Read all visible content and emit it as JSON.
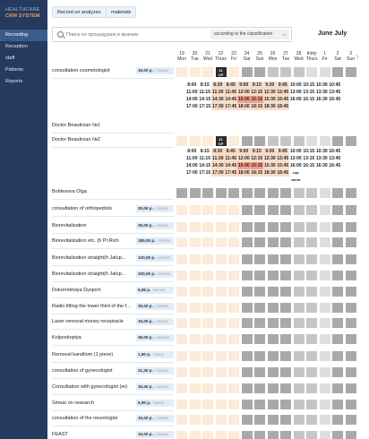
{
  "logo": {
    "line1": "HEALTHCARE",
    "line2": "CRM SYSTEM"
  },
  "nav": [
    "Recording",
    "Reception",
    "staff",
    "Patients",
    "Reports"
  ],
  "top_buttons": [
    "Record on analyzes",
    "materials"
  ],
  "search": {
    "placeholder": "Поиск по процедурам и врачам",
    "filter": "according to the classification"
  },
  "month": "June July",
  "days": [
    {
      "n": "19",
      "d": "Mon"
    },
    {
      "n": "20",
      "d": "Tue"
    },
    {
      "n": "21",
      "d": "Wed"
    },
    {
      "n": "22",
      "d": "Thurs"
    },
    {
      "n": "23",
      "d": "Fri"
    },
    {
      "n": "24",
      "d": "Sat"
    },
    {
      "n": "25",
      "d": "Sun"
    },
    {
      "n": "26",
      "d": "Mon"
    },
    {
      "n": "27",
      "d": "Tue"
    },
    {
      "n": "28",
      "d": "Wed"
    },
    {
      "n": "thirty",
      "d": "Thurs"
    },
    {
      "n": "1",
      "d": "Fri"
    },
    {
      "n": "2",
      "d": "Sat"
    },
    {
      "n": "3",
      "d": "Sun"
    }
  ],
  "today_badge": {
    "day": "21",
    "label": "СР"
  },
  "slot_row1": [
    [
      "8:00",
      "8:15",
      "8:30",
      "8:45",
      "9:00",
      "9:15",
      "9:30",
      "9:45",
      "10:00",
      "10:15",
      "10:30",
      "10:45"
    ],
    [
      "11:00",
      "11:15",
      "11:30",
      "11:45",
      "12:00",
      "12:15",
      "12:30",
      "12:45",
      "13:00",
      "13:15",
      "13:30",
      "13:45"
    ],
    [
      "14:00",
      "14:15",
      "14:30",
      "14:45",
      "15:00",
      "15:15",
      "15:30",
      "15:45",
      "16:00",
      "16:15",
      "16:30",
      "16:45"
    ],
    [
      "17:00",
      "17:15",
      "17:30",
      "17:45",
      "18:00",
      "18:15",
      "18:30",
      "18:45"
    ]
  ],
  "slot_row2": [
    [
      "8:00",
      "8:15",
      "8:30",
      "8:45",
      "9:00",
      "9:15",
      "9:30",
      "9:45",
      "10:00",
      "10:15",
      "10:30",
      "10:45"
    ],
    [
      "11:00",
      "11:15",
      "11:30",
      "11:45",
      "12:00",
      "12:15",
      "12:30",
      "12:45",
      "13:00",
      "13:15",
      "13:30",
      "13:45"
    ],
    [
      "14:00",
      "14:15",
      "14:30",
      "14:45",
      "15:00",
      "15:15",
      "15:30",
      "15:45",
      "16:00",
      "16:15",
      "16:30",
      "16:45"
    ],
    [
      "17:00",
      "17:15",
      "17:30",
      "17:45",
      "18:00",
      "18:15",
      "18:30",
      "18:45",
      "еще часов"
    ]
  ],
  "services": [
    {
      "name": "consultation cosmetologist",
      "price": "15,00 р.",
      "code": "/ 233000"
    },
    {
      "name": "Doctor Beautician №1",
      "price": "",
      "code": ""
    },
    {
      "name": "Doctor Beautician №2",
      "price": "",
      "code": ""
    },
    {
      "name": "Boldesova Olga",
      "price": "",
      "code": ""
    },
    {
      "name": "consultation of orthopedists",
      "price": "30,00 р.",
      "code": "/ 233000"
    },
    {
      "name": "Biorevitalization",
      "price": "30,00 р.",
      "code": "/ 233000"
    },
    {
      "name": "Biorevitalization etc. (h Pr.Rich",
      "price": "185,00 р.",
      "code": "/ 233000"
    },
    {
      "name": "Biorevitalization straight(h Jalup...",
      "price": "120,00 р.",
      "code": "/ 233000"
    },
    {
      "name": "Biorevitalization straight(h Jalup...",
      "price": "200,00 р.",
      "code": "/ 233000"
    },
    {
      "name": "Dokorrektsiya Dysport",
      "price": "6,65 р.",
      "code": "/ 66 500"
    },
    {
      "name": "Radio lifting the lower third of the f...",
      "price": "30,00 р.",
      "code": "/ 233000"
    },
    {
      "name": "Laser removal money receptacle",
      "price": "15,00 р.",
      "code": "/ 233000"
    },
    {
      "name": "Kolposkopiya",
      "price": "49,00 р.",
      "code": "/ 490 000"
    },
    {
      "name": "Removal kandilom (1 piece)",
      "price": "1,90 р.",
      "code": "/ 19000"
    },
    {
      "name": "consultation of gynecologist",
      "price": "21,30 р.",
      "code": "/ 213000"
    },
    {
      "name": "Consultation with gynecologist (re)",
      "price": "16,40 р.",
      "code": "/ 164000"
    },
    {
      "name": "Smear on research",
      "price": "5,90 р.",
      "code": "/ 59000"
    },
    {
      "name": "consultation of the neurologist",
      "price": "15,00 р.",
      "code": "/ 233000"
    },
    {
      "name": "FEAST",
      "price": "15,00 р.",
      "code": "/ 233000"
    }
  ]
}
